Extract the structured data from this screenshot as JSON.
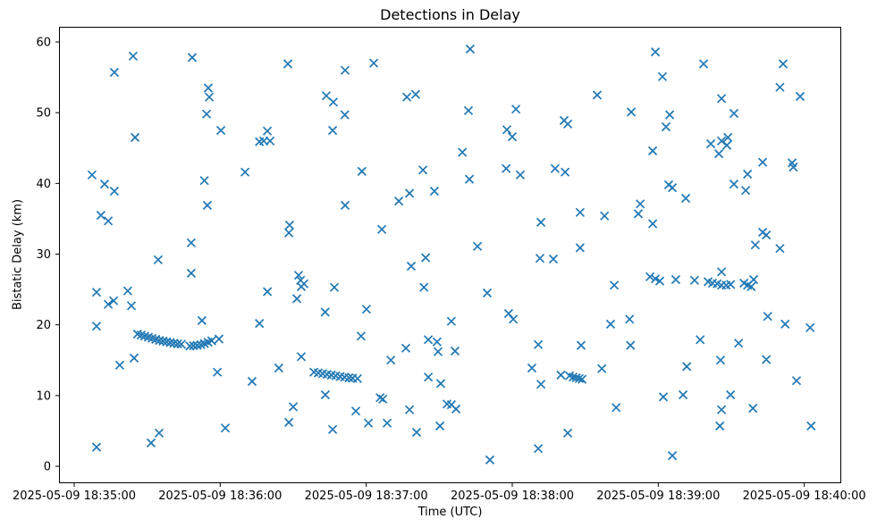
{
  "chart_data": {
    "type": "scatter",
    "title": "Detections in Delay",
    "xlabel": "Time (UTC)",
    "ylabel": "Bistatic Delay (km)",
    "marker": "x",
    "marker_color": "#1f77b4",
    "grid": false,
    "legend": null,
    "x_tick_labels": [
      "2025-05-09 18:35:00",
      "2025-05-09 18:36:00",
      "2025-05-09 18:37:00",
      "2025-05-09 18:38:00",
      "2025-05-09 18:39:00",
      "2025-05-09 18:40:00"
    ],
    "x_tick_seconds": [
      0,
      60,
      120,
      180,
      240,
      300
    ],
    "y_ticks": [
      0,
      10,
      20,
      30,
      40,
      50,
      60
    ],
    "x_unit": "seconds after 2025-05-09 18:35:00 UTC",
    "xlim_seconds": [
      -6.2,
      315.2
    ],
    "ylim": [
      -2.4,
      62.1
    ],
    "points": [
      [
        24.2,
        58.0
      ],
      [
        16.5,
        55.7
      ],
      [
        48.5,
        57.8
      ],
      [
        87.8,
        56.9
      ],
      [
        55.1,
        53.5
      ],
      [
        55.5,
        52.2
      ],
      [
        54.4,
        49.8
      ],
      [
        60.3,
        47.5
      ],
      [
        25.0,
        46.5
      ],
      [
        79.4,
        47.4
      ],
      [
        76.1,
        45.9
      ],
      [
        77.9,
        46.0
      ],
      [
        80.5,
        46.0
      ],
      [
        7.3,
        41.2
      ],
      [
        70.2,
        41.6
      ],
      [
        53.5,
        40.4
      ],
      [
        162.7,
        59.0
      ],
      [
        123.1,
        57.0
      ],
      [
        111.3,
        56.0
      ],
      [
        103.6,
        52.4
      ],
      [
        106.5,
        51.5
      ],
      [
        136.7,
        52.2
      ],
      [
        140.3,
        52.6
      ],
      [
        111.2,
        49.7
      ],
      [
        106.2,
        47.5
      ],
      [
        162.0,
        50.3
      ],
      [
        181.5,
        50.5
      ],
      [
        201.3,
        48.9
      ],
      [
        202.8,
        48.4
      ],
      [
        177.8,
        47.6
      ],
      [
        180.0,
        46.6
      ],
      [
        159.5,
        44.4
      ],
      [
        118.2,
        41.7
      ],
      [
        143.3,
        41.9
      ],
      [
        177.5,
        42.1
      ],
      [
        183.3,
        41.2
      ],
      [
        197.6,
        42.1
      ],
      [
        201.7,
        41.6
      ],
      [
        162.4,
        40.6
      ],
      [
        238.8,
        58.6
      ],
      [
        258.6,
        56.9
      ],
      [
        291.3,
        56.9
      ],
      [
        241.7,
        55.1
      ],
      [
        290.0,
        53.6
      ],
      [
        298.3,
        52.3
      ],
      [
        214.9,
        52.5
      ],
      [
        228.9,
        50.1
      ],
      [
        244.7,
        49.7
      ],
      [
        266.0,
        52.0
      ],
      [
        271.1,
        49.9
      ],
      [
        243.2,
        48.0
      ],
      [
        261.6,
        45.6
      ],
      [
        266.0,
        46.0
      ],
      [
        268.6,
        46.5
      ],
      [
        268.2,
        45.4
      ],
      [
        264.9,
        44.2
      ],
      [
        237.7,
        44.6
      ],
      [
        282.9,
        43.0
      ],
      [
        295.0,
        42.9
      ],
      [
        295.5,
        42.3
      ],
      [
        276.7,
        41.3
      ],
      [
        12.5,
        39.9
      ],
      [
        16.5,
        38.9
      ],
      [
        54.7,
        36.9
      ],
      [
        11.0,
        35.5
      ],
      [
        14.0,
        34.7
      ],
      [
        88.5,
        34.1
      ],
      [
        88.2,
        33.0
      ],
      [
        48.1,
        31.6
      ],
      [
        34.5,
        29.2
      ],
      [
        48.1,
        27.3
      ],
      [
        92.2,
        27.0
      ],
      [
        93.0,
        26.3
      ],
      [
        94.4,
        25.8
      ],
      [
        93.3,
        25.4
      ],
      [
        79.4,
        24.7
      ],
      [
        91.5,
        23.7
      ],
      [
        9.2,
        24.6
      ],
      [
        22.0,
        24.8
      ],
      [
        14.0,
        22.9
      ],
      [
        16.2,
        23.4
      ],
      [
        23.5,
        22.7
      ],
      [
        52.5,
        20.6
      ],
      [
        76.1,
        20.2
      ],
      [
        9.2,
        19.8
      ],
      [
        133.4,
        37.5
      ],
      [
        137.8,
        38.6
      ],
      [
        148.0,
        38.9
      ],
      [
        111.3,
        36.9
      ],
      [
        126.4,
        33.5
      ],
      [
        165.7,
        31.1
      ],
      [
        144.4,
        29.5
      ],
      [
        138.5,
        28.3
      ],
      [
        191.4,
        29.4
      ],
      [
        196.9,
        29.3
      ],
      [
        191.8,
        34.5
      ],
      [
        207.9,
        35.9
      ],
      [
        207.9,
        30.9
      ],
      [
        106.9,
        25.3
      ],
      [
        143.7,
        25.3
      ],
      [
        169.7,
        24.5
      ],
      [
        120.1,
        22.2
      ],
      [
        103.1,
        21.8
      ],
      [
        178.5,
        21.6
      ],
      [
        180.4,
        20.8
      ],
      [
        155.0,
        20.5
      ],
      [
        244.3,
        39.8
      ],
      [
        245.8,
        39.4
      ],
      [
        271.1,
        39.9
      ],
      [
        275.9,
        39.0
      ],
      [
        251.3,
        37.9
      ],
      [
        232.6,
        37.1
      ],
      [
        231.8,
        35.7
      ],
      [
        217.9,
        35.4
      ],
      [
        237.7,
        34.3
      ],
      [
        282.9,
        33.1
      ],
      [
        284.4,
        32.7
      ],
      [
        279.9,
        31.3
      ],
      [
        290.0,
        30.8
      ],
      [
        236.6,
        26.8
      ],
      [
        238.8,
        26.5
      ],
      [
        240.6,
        26.2
      ],
      [
        247.2,
        26.4
      ],
      [
        254.9,
        26.3
      ],
      [
        266.0,
        27.5
      ],
      [
        260.5,
        26.1
      ],
      [
        262.3,
        25.9
      ],
      [
        264.2,
        25.8
      ],
      [
        266.0,
        25.6
      ],
      [
        267.9,
        25.6
      ],
      [
        269.7,
        25.7
      ],
      [
        275.2,
        25.9
      ],
      [
        276.7,
        25.6
      ],
      [
        278.2,
        25.4
      ],
      [
        279.2,
        26.4
      ],
      [
        221.9,
        25.6
      ],
      [
        220.4,
        20.1
      ],
      [
        228.2,
        20.8
      ],
      [
        285.0,
        21.2
      ],
      [
        292.1,
        20.1
      ],
      [
        302.4,
        19.6
      ],
      [
        26.0,
        18.7
      ],
      [
        27.5,
        18.55
      ],
      [
        29.0,
        18.4
      ],
      [
        30.5,
        18.25
      ],
      [
        32.0,
        18.1
      ],
      [
        33.5,
        17.95
      ],
      [
        35.0,
        17.8
      ],
      [
        36.5,
        17.7
      ],
      [
        38.0,
        17.6
      ],
      [
        39.5,
        17.5
      ],
      [
        41.0,
        17.4
      ],
      [
        42.5,
        17.3
      ],
      [
        44.0,
        17.25
      ],
      [
        47.5,
        17.0
      ],
      [
        49.0,
        17.05
      ],
      [
        50.5,
        17.1
      ],
      [
        52.0,
        17.2
      ],
      [
        53.5,
        17.35
      ],
      [
        55.0,
        17.55
      ],
      [
        56.5,
        17.75
      ],
      [
        59.5,
        18.0
      ],
      [
        24.6,
        15.3
      ],
      [
        18.7,
        14.3
      ],
      [
        58.8,
        13.3
      ],
      [
        73.1,
        12.0
      ],
      [
        84.1,
        13.9
      ],
      [
        93.3,
        15.5
      ],
      [
        90.0,
        8.4
      ],
      [
        88.2,
        6.2
      ],
      [
        62.1,
        5.4
      ],
      [
        34.9,
        4.7
      ],
      [
        31.6,
        3.3
      ],
      [
        9.2,
        2.7
      ],
      [
        117.9,
        18.4
      ],
      [
        136.3,
        16.7
      ],
      [
        145.5,
        17.9
      ],
      [
        149.1,
        17.6
      ],
      [
        149.5,
        16.2
      ],
      [
        156.5,
        16.3
      ],
      [
        130.1,
        15.0
      ],
      [
        98.5,
        13.3
      ],
      [
        100.3,
        13.2
      ],
      [
        102.1,
        13.1
      ],
      [
        103.9,
        13.0
      ],
      [
        105.7,
        12.9
      ],
      [
        107.5,
        12.8
      ],
      [
        109.3,
        12.7
      ],
      [
        111.1,
        12.6
      ],
      [
        112.9,
        12.5
      ],
      [
        114.4,
        12.45
      ],
      [
        116.4,
        12.4
      ],
      [
        190.7,
        17.2
      ],
      [
        208.3,
        17.1
      ],
      [
        188.1,
        13.9
      ],
      [
        191.8,
        11.6
      ],
      [
        200.0,
        12.9
      ],
      [
        203.5,
        12.8
      ],
      [
        205.0,
        12.6
      ],
      [
        206.3,
        12.5
      ],
      [
        207.5,
        12.4
      ],
      [
        208.7,
        12.3
      ],
      [
        145.5,
        12.6
      ],
      [
        150.6,
        11.7
      ],
      [
        103.2,
        10.1
      ],
      [
        125.7,
        9.7
      ],
      [
        126.8,
        9.5
      ],
      [
        153.2,
        8.8
      ],
      [
        155.0,
        8.7
      ],
      [
        156.9,
        8.1
      ],
      [
        115.7,
        7.8
      ],
      [
        137.8,
        8.0
      ],
      [
        120.9,
        6.1
      ],
      [
        128.6,
        6.1
      ],
      [
        106.2,
        5.2
      ],
      [
        140.7,
        4.8
      ],
      [
        150.3,
        5.7
      ],
      [
        190.7,
        2.5
      ],
      [
        170.8,
        0.9
      ],
      [
        202.8,
        4.7
      ],
      [
        228.6,
        17.1
      ],
      [
        216.8,
        13.8
      ],
      [
        257.2,
        17.9
      ],
      [
        273.0,
        17.4
      ],
      [
        265.6,
        15.0
      ],
      [
        284.4,
        15.1
      ],
      [
        251.7,
        14.1
      ],
      [
        296.8,
        12.1
      ],
      [
        242.1,
        9.8
      ],
      [
        250.2,
        10.1
      ],
      [
        269.7,
        10.1
      ],
      [
        222.7,
        8.3
      ],
      [
        266.0,
        8.0
      ],
      [
        278.9,
        8.2
      ],
      [
        265.3,
        5.7
      ],
      [
        302.8,
        5.7
      ],
      [
        245.8,
        1.5
      ]
    ]
  }
}
